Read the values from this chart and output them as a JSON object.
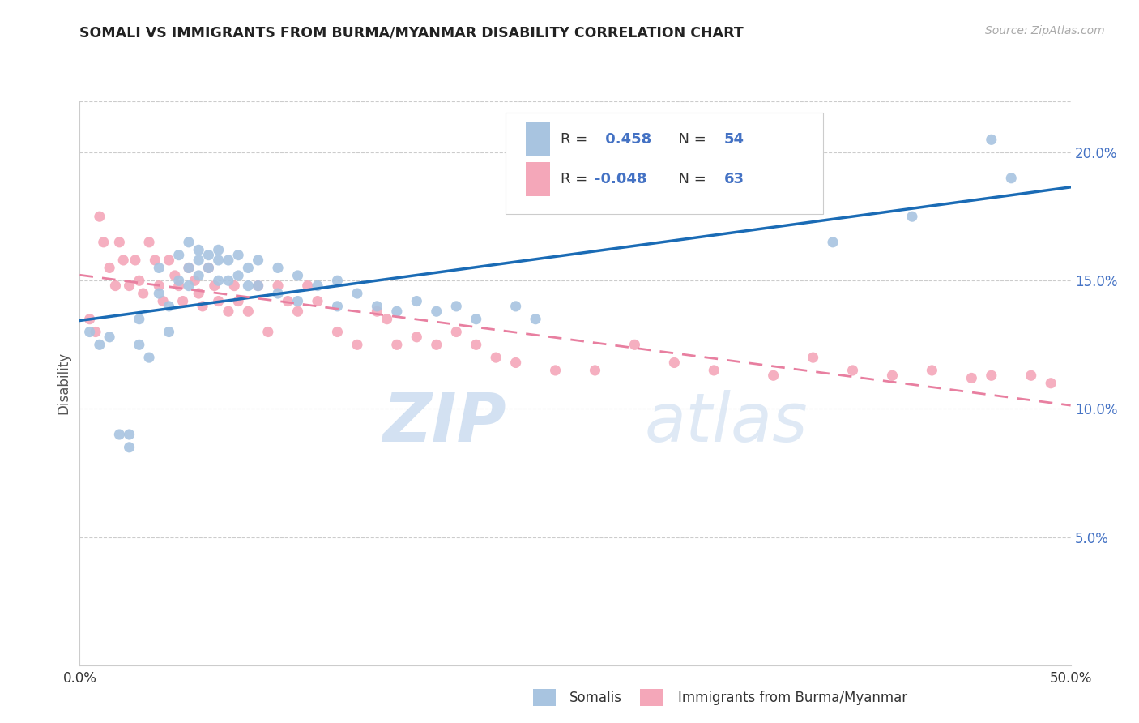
{
  "title": "SOMALI VS IMMIGRANTS FROM BURMA/MYANMAR DISABILITY CORRELATION CHART",
  "source": "Source: ZipAtlas.com",
  "ylabel": "Disability",
  "xlim": [
    0.0,
    0.5
  ],
  "ylim": [
    0.0,
    0.22
  ],
  "yticks": [
    0.05,
    0.1,
    0.15,
    0.2
  ],
  "ytick_labels": [
    "5.0%",
    "10.0%",
    "15.0%",
    "20.0%"
  ],
  "xticks": [
    0.0,
    0.1,
    0.2,
    0.3,
    0.4,
    0.5
  ],
  "xtick_labels": [
    "0.0%",
    "",
    "",
    "",
    "",
    "50.0%"
  ],
  "color_somali": "#a8c4e0",
  "color_burma": "#f4a7b9",
  "color_somali_line": "#1a6bb5",
  "color_burma_line": "#e87fa0",
  "watermark_zip": "ZIP",
  "watermark_atlas": "atlas",
  "somali_x": [
    0.005,
    0.01,
    0.015,
    0.02,
    0.025,
    0.025,
    0.03,
    0.03,
    0.035,
    0.04,
    0.04,
    0.045,
    0.045,
    0.05,
    0.05,
    0.055,
    0.055,
    0.055,
    0.06,
    0.06,
    0.06,
    0.065,
    0.065,
    0.07,
    0.07,
    0.07,
    0.075,
    0.075,
    0.08,
    0.08,
    0.085,
    0.085,
    0.09,
    0.09,
    0.1,
    0.1,
    0.11,
    0.11,
    0.12,
    0.13,
    0.13,
    0.14,
    0.15,
    0.16,
    0.17,
    0.18,
    0.19,
    0.2,
    0.22,
    0.23,
    0.38,
    0.42,
    0.46,
    0.47
  ],
  "somali_y": [
    0.13,
    0.125,
    0.128,
    0.09,
    0.085,
    0.09,
    0.135,
    0.125,
    0.12,
    0.155,
    0.145,
    0.14,
    0.13,
    0.16,
    0.15,
    0.165,
    0.155,
    0.148,
    0.162,
    0.158,
    0.152,
    0.16,
    0.155,
    0.162,
    0.158,
    0.15,
    0.158,
    0.15,
    0.16,
    0.152,
    0.155,
    0.148,
    0.158,
    0.148,
    0.155,
    0.145,
    0.152,
    0.142,
    0.148,
    0.15,
    0.14,
    0.145,
    0.14,
    0.138,
    0.142,
    0.138,
    0.14,
    0.135,
    0.14,
    0.135,
    0.165,
    0.175,
    0.205,
    0.19
  ],
  "burma_x": [
    0.005,
    0.008,
    0.01,
    0.012,
    0.015,
    0.018,
    0.02,
    0.022,
    0.025,
    0.028,
    0.03,
    0.032,
    0.035,
    0.038,
    0.04,
    0.042,
    0.045,
    0.048,
    0.05,
    0.052,
    0.055,
    0.058,
    0.06,
    0.062,
    0.065,
    0.068,
    0.07,
    0.075,
    0.078,
    0.08,
    0.085,
    0.09,
    0.095,
    0.1,
    0.105,
    0.11,
    0.115,
    0.12,
    0.13,
    0.14,
    0.15,
    0.155,
    0.16,
    0.17,
    0.18,
    0.19,
    0.2,
    0.21,
    0.22,
    0.24,
    0.26,
    0.28,
    0.3,
    0.32,
    0.35,
    0.37,
    0.39,
    0.41,
    0.43,
    0.45,
    0.46,
    0.48,
    0.49
  ],
  "burma_y": [
    0.135,
    0.13,
    0.175,
    0.165,
    0.155,
    0.148,
    0.165,
    0.158,
    0.148,
    0.158,
    0.15,
    0.145,
    0.165,
    0.158,
    0.148,
    0.142,
    0.158,
    0.152,
    0.148,
    0.142,
    0.155,
    0.15,
    0.145,
    0.14,
    0.155,
    0.148,
    0.142,
    0.138,
    0.148,
    0.142,
    0.138,
    0.148,
    0.13,
    0.148,
    0.142,
    0.138,
    0.148,
    0.142,
    0.13,
    0.125,
    0.138,
    0.135,
    0.125,
    0.128,
    0.125,
    0.13,
    0.125,
    0.12,
    0.118,
    0.115,
    0.115,
    0.125,
    0.118,
    0.115,
    0.113,
    0.12,
    0.115,
    0.113,
    0.115,
    0.112,
    0.113,
    0.113,
    0.11
  ]
}
